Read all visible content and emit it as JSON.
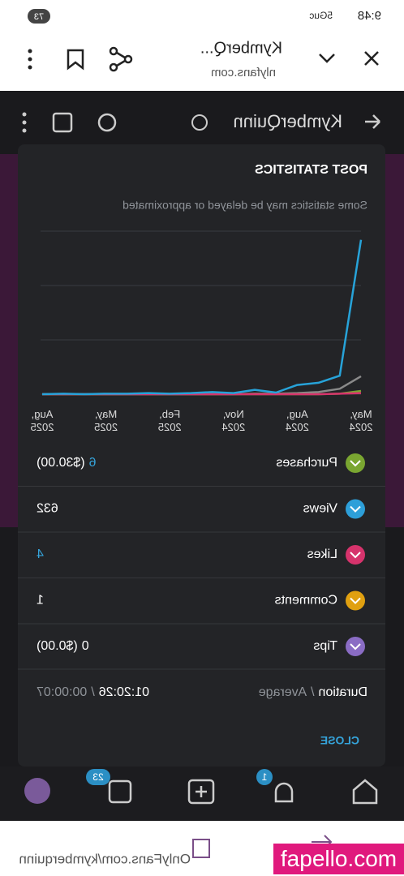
{
  "status_bar": {
    "time": "9:48",
    "network": "5Guc",
    "battery": "73"
  },
  "browser": {
    "title": "KymberQ...",
    "url": "nlyfans.com",
    "bottom_url": "OnlyFans.com/kymberquinn"
  },
  "profile": {
    "name": "KymberQuinn"
  },
  "modal": {
    "title": "POST STATISTICS",
    "subtitle": "Some statistics may be delayed or approximated",
    "close": "CLOSE",
    "chart_data": {
      "type": "line",
      "categories": [
        "May, 2024",
        null,
        null,
        "Aug, 2024",
        null,
        null,
        "Nov, 2024",
        null,
        null,
        "Feb, 2025",
        null,
        null,
        "May, 2025",
        null,
        null,
        "Aug, 2025"
      ],
      "ylim": [
        0,
        300
      ],
      "gridlines": [
        0,
        100,
        200,
        300
      ],
      "series": [
        {
          "color": "#8a8a8a",
          "values": [
            33,
            10,
            4,
            2,
            1,
            1,
            0,
            0,
            0,
            0,
            0,
            0,
            0,
            0,
            0,
            0
          ]
        },
        {
          "color": "#7aa631",
          "values": [
            6,
            1,
            0,
            0,
            0,
            0,
            0,
            0,
            0,
            0,
            0,
            0,
            0,
            0,
            0,
            0
          ]
        },
        {
          "color": "#d6336c",
          "values": [
            2,
            1,
            0,
            0,
            0,
            0,
            0,
            0,
            0,
            0,
            0,
            0,
            0,
            0,
            0,
            0
          ]
        },
        {
          "color": "#27a3d9",
          "values": [
            284,
            34,
            21,
            17,
            3,
            8,
            2,
            4,
            2,
            1,
            2,
            1,
            1,
            0,
            1,
            0
          ]
        }
      ]
    },
    "rows": [
      {
        "name": "Purchases",
        "color": "#7aa631",
        "value": "6",
        "value_color": "#35a4db",
        "detail": "($30.00)"
      },
      {
        "name": "Views",
        "color": "#2d9fd9",
        "value": "632",
        "value_color": "#ffffff"
      },
      {
        "name": "Likes",
        "color": "#d6336c",
        "value": "4",
        "value_color": "#35a4db"
      },
      {
        "name": "Comments",
        "color": "#e0a010",
        "value": "1",
        "value_color": "#ffffff"
      },
      {
        "name": "Tips",
        "color": "#8a6cc4",
        "value": "0",
        "value_color": "#ffffff",
        "detail": "($0.00)"
      }
    ],
    "duration": {
      "label": "Duration",
      "separator": "/",
      "label2": "Average",
      "value": "01:20:26",
      "value2": "00:00:07"
    }
  },
  "nav": {
    "messages_badge": "23",
    "notifications_badge": "1"
  },
  "watermark": "fapello.com"
}
